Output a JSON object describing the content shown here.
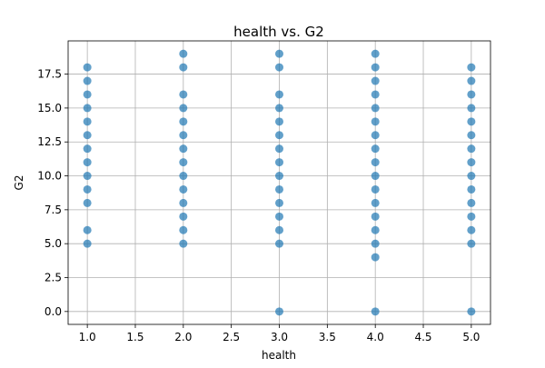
{
  "chart_data": {
    "type": "scatter",
    "title": "health vs. G2",
    "xlabel": "health",
    "ylabel": "G2",
    "xlim": [
      0.8,
      5.2
    ],
    "ylim": [
      -0.95,
      19.95
    ],
    "xticks": [
      "1.0",
      "1.5",
      "2.0",
      "2.5",
      "3.0",
      "3.5",
      "4.0",
      "4.5",
      "5.0"
    ],
    "yticks": [
      "0.0",
      "2.5",
      "5.0",
      "7.5",
      "10.0",
      "12.5",
      "15.0",
      "17.5"
    ],
    "grid": true,
    "marker_color": "#1f77b4",
    "series": [
      {
        "points": [
          [
            1,
            18
          ],
          [
            1,
            17
          ],
          [
            1,
            16
          ],
          [
            1,
            15
          ],
          [
            1,
            14
          ],
          [
            1,
            13
          ],
          [
            1,
            12
          ],
          [
            1,
            11
          ],
          [
            1,
            10
          ],
          [
            1,
            9
          ],
          [
            1,
            8
          ],
          [
            1,
            6
          ],
          [
            1,
            5
          ],
          [
            2,
            19
          ],
          [
            2,
            18
          ],
          [
            2,
            16
          ],
          [
            2,
            15
          ],
          [
            2,
            14
          ],
          [
            2,
            13
          ],
          [
            2,
            12
          ],
          [
            2,
            11
          ],
          [
            2,
            10
          ],
          [
            2,
            9
          ],
          [
            2,
            8
          ],
          [
            2,
            7
          ],
          [
            2,
            6
          ],
          [
            2,
            5
          ],
          [
            3,
            19
          ],
          [
            3,
            18
          ],
          [
            3,
            16
          ],
          [
            3,
            15
          ],
          [
            3,
            14
          ],
          [
            3,
            13
          ],
          [
            3,
            12
          ],
          [
            3,
            11
          ],
          [
            3,
            10
          ],
          [
            3,
            9
          ],
          [
            3,
            8
          ],
          [
            3,
            7
          ],
          [
            3,
            6
          ],
          [
            3,
            5
          ],
          [
            3,
            0
          ],
          [
            4,
            19
          ],
          [
            4,
            18
          ],
          [
            4,
            17
          ],
          [
            4,
            16
          ],
          [
            4,
            15
          ],
          [
            4,
            14
          ],
          [
            4,
            13
          ],
          [
            4,
            12
          ],
          [
            4,
            11
          ],
          [
            4,
            10
          ],
          [
            4,
            9
          ],
          [
            4,
            8
          ],
          [
            4,
            7
          ],
          [
            4,
            6
          ],
          [
            4,
            5
          ],
          [
            4,
            4
          ],
          [
            4,
            0
          ],
          [
            5,
            18
          ],
          [
            5,
            17
          ],
          [
            5,
            16
          ],
          [
            5,
            15
          ],
          [
            5,
            14
          ],
          [
            5,
            13
          ],
          [
            5,
            12
          ],
          [
            5,
            11
          ],
          [
            5,
            10
          ],
          [
            5,
            9
          ],
          [
            5,
            8
          ],
          [
            5,
            7
          ],
          [
            5,
            6
          ],
          [
            5,
            5
          ],
          [
            5,
            0
          ]
        ]
      }
    ]
  }
}
